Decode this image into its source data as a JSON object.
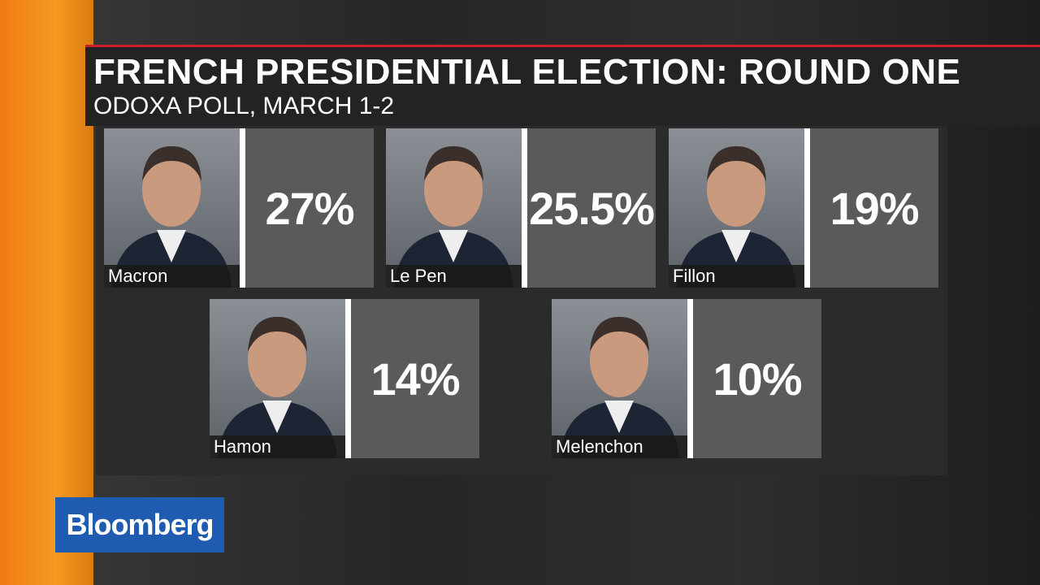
{
  "header": {
    "title": "FRENCH PRESIDENTIAL ELECTION: ROUND ONE",
    "subtitle": "ODOXA POLL, MARCH 1-2"
  },
  "candidates": [
    {
      "name": "Macron",
      "value": "27%"
    },
    {
      "name": "Le Pen",
      "value": "25.5%"
    },
    {
      "name": "Fillon",
      "value": "19%"
    },
    {
      "name": "Hamon",
      "value": "14%"
    },
    {
      "name": "Melenchon",
      "value": "10%"
    }
  ],
  "logo": "Bloomberg"
}
